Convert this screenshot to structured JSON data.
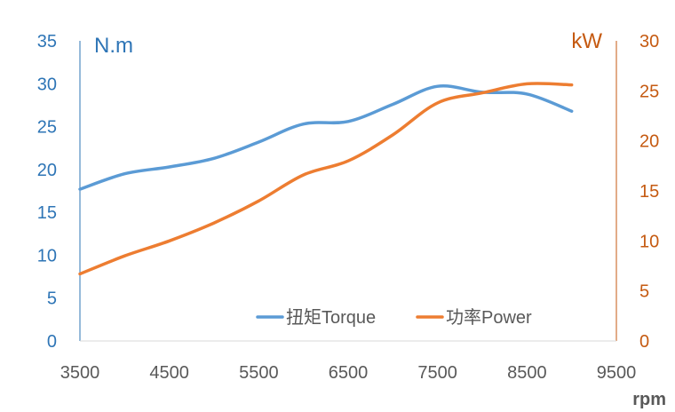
{
  "chart_data": {
    "type": "line",
    "x": [
      3500,
      4000,
      4500,
      5000,
      5500,
      6000,
      6500,
      7000,
      7500,
      8000,
      8500,
      9000
    ],
    "series": [
      {
        "name": "扭矩Torque",
        "axis": "left",
        "color": "#5B9BD5",
        "values": [
          17.7,
          19.5,
          20.3,
          21.3,
          23.2,
          25.3,
          25.6,
          27.6,
          29.7,
          29.0,
          28.8,
          26.8
        ]
      },
      {
        "name": "功率Power",
        "axis": "right",
        "color": "#ED7D31",
        "values": [
          6.7,
          8.5,
          10.0,
          11.8,
          14.0,
          16.6,
          18.0,
          20.6,
          23.8,
          24.8,
          25.7,
          25.6
        ]
      }
    ],
    "x_axis": {
      "label": "rpm",
      "range": [
        3500,
        9500
      ],
      "ticks": [
        "3500",
        "4500",
        "5500",
        "6500",
        "7500",
        "8500",
        "9500"
      ]
    },
    "y_left": {
      "label": "N.m",
      "range": [
        0,
        35
      ],
      "ticks": [
        "0",
        "5",
        "10",
        "15",
        "20",
        "25",
        "30",
        "35"
      ],
      "color": "#2E75B6"
    },
    "y_right": {
      "label": "kW",
      "range": [
        0,
        30
      ],
      "ticks": [
        "0",
        "5",
        "10",
        "15",
        "20",
        "25",
        "30"
      ],
      "color": "#C55A11"
    },
    "grid": false,
    "legend": "bottom-right inside plot"
  }
}
